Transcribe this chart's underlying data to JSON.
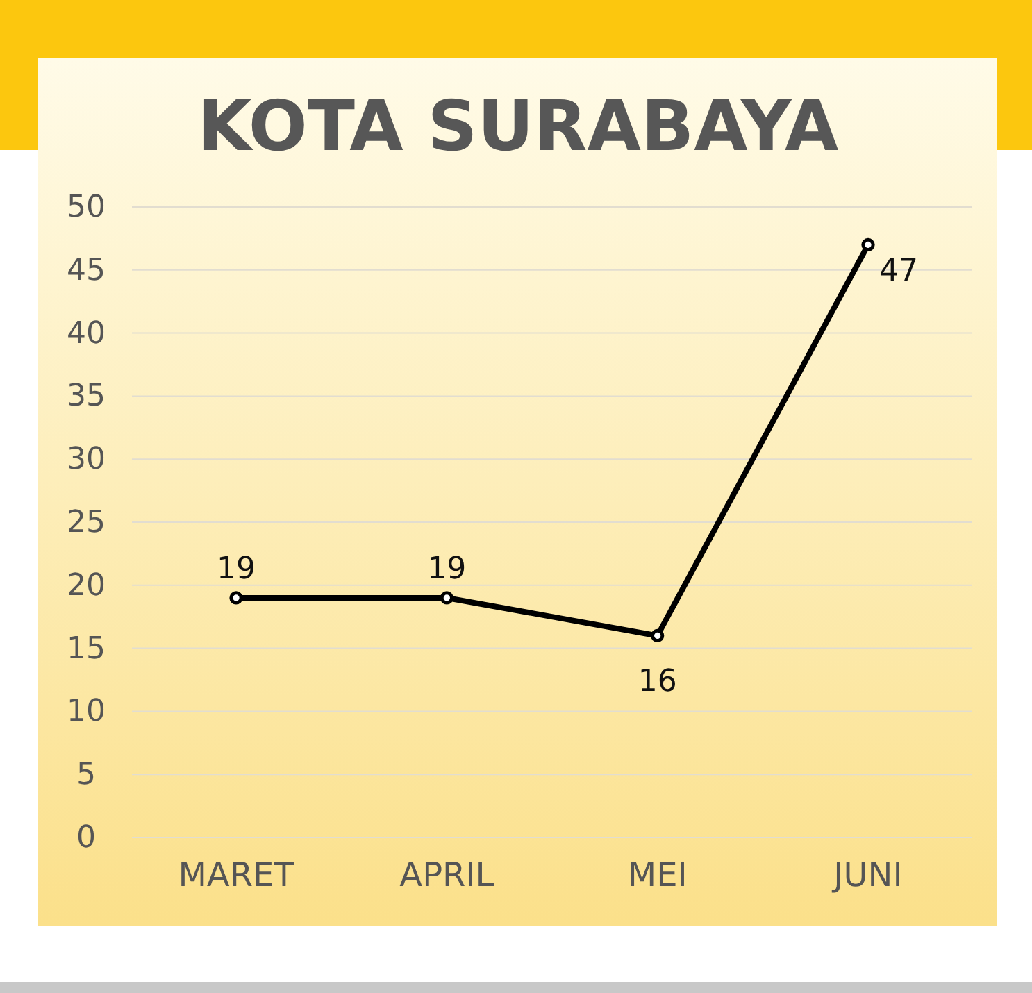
{
  "chart_data": {
    "type": "line",
    "title": "KOTA SURABAYA",
    "categories": [
      "MARET",
      "APRIL",
      "MEI",
      "JUNI"
    ],
    "series": [
      {
        "color": "#000000",
        "values": [
          19,
          19,
          16,
          47
        ]
      }
    ],
    "ylim": [
      0,
      50
    ],
    "yticks": [
      0,
      5,
      10,
      15,
      20,
      25,
      30,
      35,
      40,
      45,
      50
    ],
    "grid": "y",
    "marker": "circle",
    "line_style": "solid",
    "data_labels": true
  }
}
